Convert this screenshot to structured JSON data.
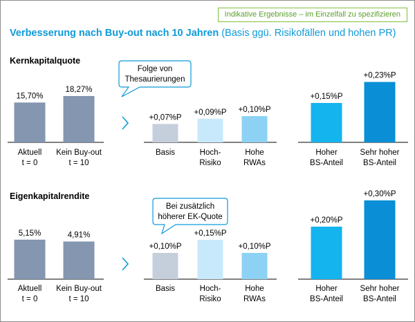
{
  "badge": "Indikative Ergebnisse – im Einzelfall zu spezifizieren",
  "title": {
    "bold": "Verbesserung nach Buy-out nach 10 Jahren",
    "normal": "(Basis ggü. Risikofällen und hohen PR)"
  },
  "colors": {
    "accent": "#0f9ad8",
    "badge": "#5aa02c",
    "grey_bar": "#8496b0",
    "light_grey_bar": "#c5cfdc",
    "light_blue_bar": "#c8e9fb",
    "mid_blue_bar": "#8dd2f5",
    "cyan_bar": "#14b4ef",
    "blue_bar": "#0a8fd6"
  },
  "arrow_icon": "chevron-right-icon",
  "chart_data": [
    {
      "type": "bar",
      "title": "Kernkapitalquote",
      "callout": [
        "Folge von",
        "Thesaurierungen"
      ],
      "groups": [
        {
          "unit": "percent",
          "categories": [
            [
              "Aktuell",
              "t = 0"
            ],
            [
              "Kein Buy-out",
              "t = 10"
            ]
          ],
          "values": [
            15.7,
            18.27
          ],
          "labels": [
            "15,70%",
            "18,27%"
          ],
          "colors": [
            "#8496b0",
            "#8496b0"
          ]
        },
        {
          "unit": "percentage points",
          "categories": [
            [
              "Basis"
            ],
            [
              "Hoch-",
              "Risiko"
            ],
            [
              "Hohe",
              "RWAs"
            ]
          ],
          "values": [
            0.07,
            0.09,
            0.1
          ],
          "labels": [
            "+0,07%P",
            "+0,09%P",
            "+0,10%P"
          ],
          "colors": [
            "#c5cfdc",
            "#c8e9fb",
            "#8dd2f5"
          ]
        },
        {
          "unit": "percentage points",
          "categories": [
            [
              "Hoher",
              "BS-Anteil"
            ],
            [
              "Sehr hoher",
              "BS-Anteil"
            ]
          ],
          "values": [
            0.15,
            0.23
          ],
          "labels": [
            "+0,15%P",
            "+0,23%P"
          ],
          "colors": [
            "#14b4ef",
            "#0a8fd6"
          ]
        }
      ]
    },
    {
      "type": "bar",
      "title": "Eigenkapitalrendite",
      "callout": [
        "Bei zusätzlich",
        "höherer EK-Quote"
      ],
      "groups": [
        {
          "unit": "percent",
          "categories": [
            [
              "Aktuell",
              "t = 0"
            ],
            [
              "Kein Buy-out",
              "t = 10"
            ]
          ],
          "values": [
            5.15,
            4.91
          ],
          "labels": [
            "5,15%",
            "4,91%"
          ],
          "colors": [
            "#8496b0",
            "#8496b0"
          ]
        },
        {
          "unit": "percentage points",
          "categories": [
            [
              "Basis"
            ],
            [
              "Hoch-",
              "Risiko"
            ],
            [
              "Hohe",
              "RWAs"
            ]
          ],
          "values": [
            0.1,
            0.15,
            0.1
          ],
          "labels": [
            "+0,10%P",
            "+0,15%P",
            "+0,10%P"
          ],
          "colors": [
            "#c5cfdc",
            "#c8e9fb",
            "#8dd2f5"
          ]
        },
        {
          "unit": "percentage points",
          "categories": [
            [
              "Hoher",
              "BS-Anteil"
            ],
            [
              "Sehr hoher",
              "BS-Anteil"
            ]
          ],
          "values": [
            0.2,
            0.3
          ],
          "labels": [
            "+0,20%P",
            "+0,30%P"
          ],
          "colors": [
            "#14b4ef",
            "#0a8fd6"
          ]
        }
      ]
    }
  ]
}
